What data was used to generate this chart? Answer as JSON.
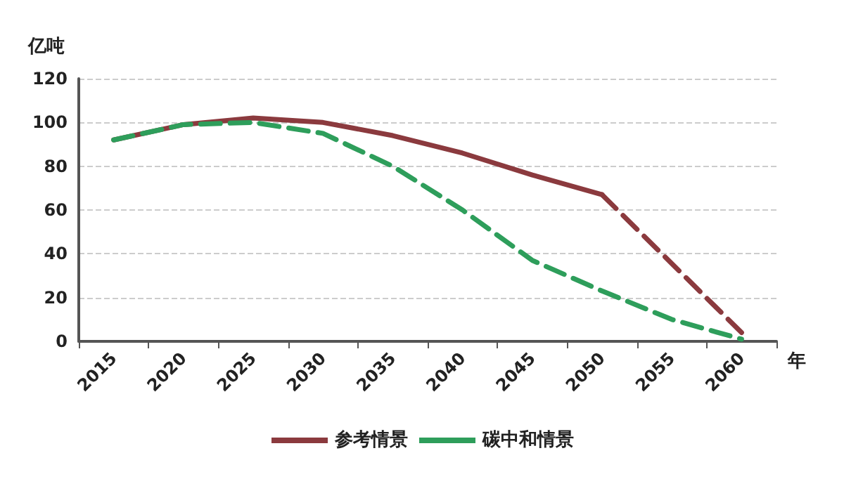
{
  "chart_data": {
    "type": "line",
    "ylabel": "亿吨",
    "xlabel": "年",
    "categories": [
      "2015",
      "2020",
      "2025",
      "2030",
      "2035",
      "2040",
      "2045",
      "2050",
      "2055",
      "2060"
    ],
    "series": [
      {
        "name": "参考情景",
        "color": "#8b3a3e",
        "line_style": "solid",
        "values": [
          92,
          99,
          102,
          100,
          94,
          86,
          76,
          67,
          null,
          null
        ]
      },
      {
        "color": "#8b3a3e",
        "line_style": "dashed",
        "values": [
          null,
          null,
          null,
          null,
          null,
          null,
          null,
          67,
          null,
          4
        ]
      },
      {
        "name": "碳中和情景",
        "color": "#2e9e5b",
        "line_style": "dashed",
        "values": [
          92,
          99,
          100,
          95,
          80,
          60,
          37,
          23,
          10,
          1
        ]
      }
    ],
    "ylim": [
      0,
      120
    ],
    "yticks": [
      0,
      20,
      40,
      60,
      80,
      100,
      120
    ],
    "grid": "y",
    "legend": "bottom",
    "marker": "none"
  }
}
